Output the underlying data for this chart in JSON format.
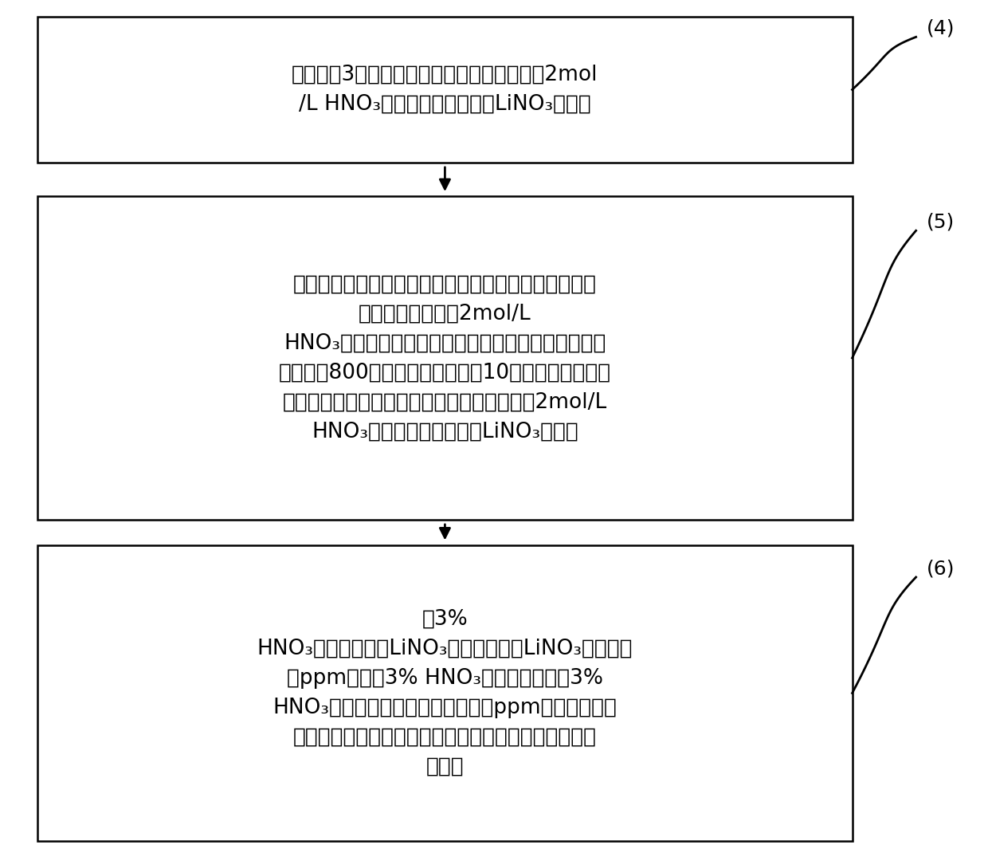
{
  "background_color": "#ffffff",
  "box_texts": [
    "向步骤（3）得到的石墨相锂的氧化物中加入2mol\n/L HNO₃，使之转化为石墨相LiNO₃溶液；",
    "将所述电解池中的电解质溶液取出，向取出的电解质溶\n液中加入同体积的2mol/L\nHNO₃形成混合溶液，将混合溶液在电炉上蒸发至尽干\n，再置于800摄氏度马弗炉中加热10小时，得到溶液相\n锂的氧化物，向所述溶液相锂的氧化物中加入2mol/L\nHNO₃，使之转化为溶液相LiNO₃溶液；",
    "用3%\nHNO₃将所述石墨相LiNO₃溶液和溶液相LiNO₃溶液稀释\n至ppm级，以3% HNO₃做空白对照，以3%\nHNO₃稀释的天然丰度醒酸锂溶液至ppm级为标准，利\n用无机质谱仪进行同位素丰度测定，计算得到单级分离\n系数。"
  ],
  "labels": [
    "(4)",
    "(5)",
    "(6)"
  ],
  "box_color": "#ffffff",
  "box_edge_color": "#000000",
  "arrow_color": "#000000",
  "text_color": "#000000",
  "font_size": 19,
  "label_font_size": 18
}
